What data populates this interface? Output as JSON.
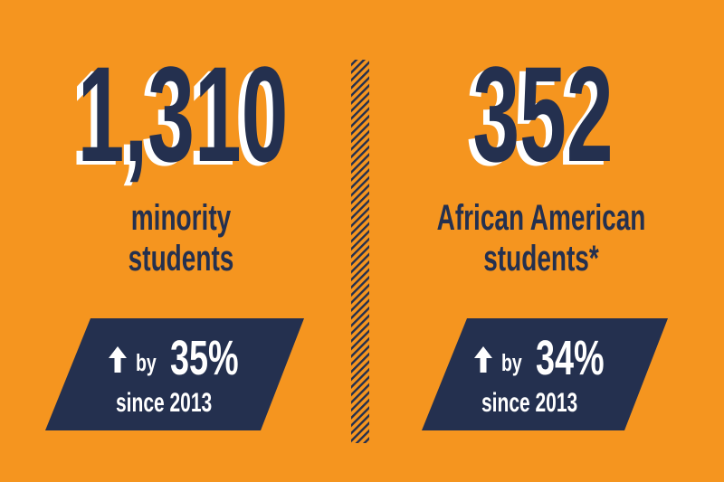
{
  "stats": [
    {
      "number": "1,310",
      "label_lines": [
        "minority",
        "students"
      ],
      "change": {
        "prefix": "by",
        "percent": "35%",
        "since": "since 2013"
      }
    },
    {
      "number": "352",
      "label_lines": [
        "African American",
        "students*"
      ],
      "change": {
        "prefix": "by",
        "percent": "34%",
        "since": "since 2013"
      }
    }
  ]
}
